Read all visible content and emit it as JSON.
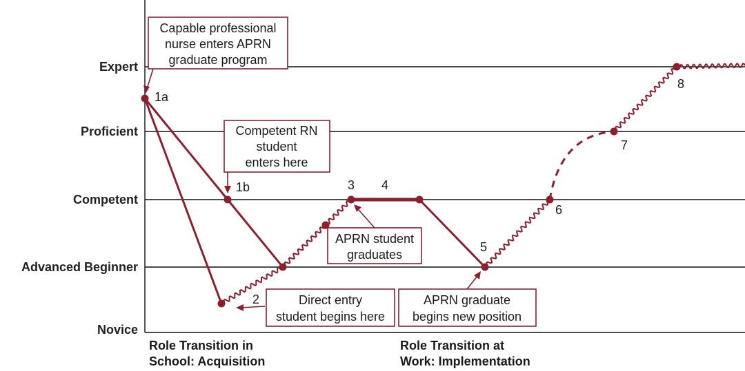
{
  "levels": {
    "expert": "Expert",
    "proficient": "Proficient",
    "competent": "Competent",
    "advanced_beginner": "Advanced Beginner",
    "novice": "Novice"
  },
  "points": {
    "p1a": "1a",
    "p1b": "1b",
    "p2": "2",
    "p3": "3",
    "p4": "4",
    "p5": "5",
    "p6": "6",
    "p7": "7",
    "p8": "8"
  },
  "callouts": {
    "capable_professional": [
      "Capable professional",
      "nurse enters APRN",
      "graduate program"
    ],
    "competent_rn": [
      "Competent RN",
      "student",
      "enters here"
    ],
    "aprn_student": [
      "APRN student",
      "graduates"
    ],
    "direct_entry": [
      "Direct entry",
      "student begins here"
    ],
    "aprn_graduate": [
      "APRN graduate",
      "begins new position"
    ]
  },
  "phases": {
    "school": [
      "Role Transition in",
      "School: Acquisition"
    ],
    "work": [
      "Role Transition at",
      "Work: Implementation"
    ]
  },
  "colors": {
    "accent": "#8c1f2e",
    "grid": "#111111",
    "text": "#1a1a1a"
  }
}
